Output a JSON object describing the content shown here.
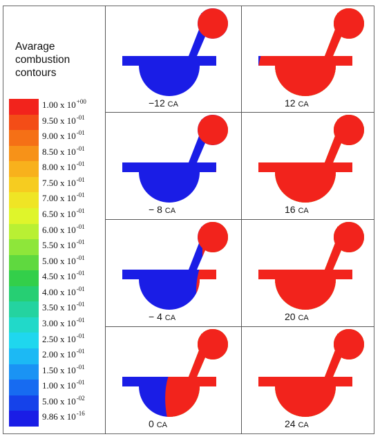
{
  "legend": {
    "title_lines": [
      "Avarage",
      "combustion",
      "contours"
    ],
    "entries": [
      {
        "mant": "1.00 x 10",
        "exp": "+00",
        "color": "#f2231c"
      },
      {
        "mant": "9.50 x 10",
        "exp": "-01",
        "color": "#f34d17"
      },
      {
        "mant": "9.00 x 10",
        "exp": "-01",
        "color": "#f57016"
      },
      {
        "mant": "8.50 x 10",
        "exp": "-01",
        "color": "#f79218"
      },
      {
        "mant": "8.00 x 10",
        "exp": "-01",
        "color": "#f8b11c"
      },
      {
        "mant": "7.50 x 10",
        "exp": "-01",
        "color": "#f6cc20"
      },
      {
        "mant": "7.00 x 10",
        "exp": "-01",
        "color": "#efe525"
      },
      {
        "mant": "6.50 x 10",
        "exp": "-01",
        "color": "#dff52b"
      },
      {
        "mant": "6.00 x 10",
        "exp": "-01",
        "color": "#b9f033"
      },
      {
        "mant": "5.50 x 10",
        "exp": "-01",
        "color": "#8ee63a"
      },
      {
        "mant": "5.00 x 10",
        "exp": "-01",
        "color": "#5fd93f"
      },
      {
        "mant": "4.50 x 10",
        "exp": "-01",
        "color": "#33cf4a"
      },
      {
        "mant": "4.00 x 10",
        "exp": "-01",
        "color": "#26cf73"
      },
      {
        "mant": "3.50 x 10",
        "exp": "-01",
        "color": "#24d3a0"
      },
      {
        "mant": "3.00 x 10",
        "exp": "-01",
        "color": "#21d9c9"
      },
      {
        "mant": "2.50 x 10",
        "exp": "-01",
        "color": "#1fd7ee"
      },
      {
        "mant": "2.00 x 10",
        "exp": "-01",
        "color": "#1cb9f4"
      },
      {
        "mant": "1.50 x 10",
        "exp": "-01",
        "color": "#1a93f4"
      },
      {
        "mant": "1.00 x 10",
        "exp": "-01",
        "color": "#176bf1"
      },
      {
        "mant": "5.00 x 10",
        "exp": "-02",
        "color": "#1542ea"
      },
      {
        "mant": "9.86 x 10",
        "exp": "-16",
        "color": "#1a1de6"
      }
    ]
  },
  "panels": [
    {
      "num": "−12",
      "unit": "CA",
      "burn": 0.0
    },
    {
      "num": "12",
      "unit": "CA",
      "burn": 0.8
    },
    {
      "num": "− 8",
      "unit": "CA",
      "burn": 0.05
    },
    {
      "num": "16",
      "unit": "CA",
      "burn": 0.88
    },
    {
      "num": "− 4",
      "unit": "CA",
      "burn": 0.2
    },
    {
      "num": "20",
      "unit": "CA",
      "burn": 0.94
    },
    {
      "num": "0",
      "unit": "CA",
      "burn": 0.45
    },
    {
      "num": "24",
      "unit": "CA",
      "burn": 0.98
    }
  ],
  "colors": {
    "red": "#f2231c",
    "blue": "#1a1de6",
    "orange": "#f79218",
    "yellow": "#efe525",
    "cyan": "#21d9c9",
    "green": "#33cf4a"
  }
}
